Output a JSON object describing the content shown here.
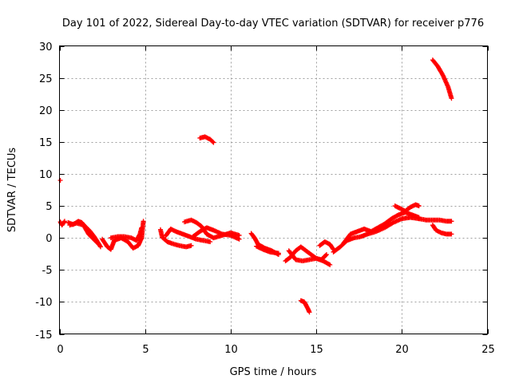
{
  "chart_data": {
    "type": "scatter",
    "title": "Day 101 of 2022, Sidereal Day-to-day VTEC variation (SDTVAR) for receiver p776",
    "xlabel": "GPS time / hours",
    "ylabel": "SDTVAR / TECUs",
    "xlim": [
      0,
      25
    ],
    "ylim": [
      -15,
      30
    ],
    "xticks": [
      0,
      5,
      10,
      15,
      20,
      25
    ],
    "yticks": [
      -15,
      -10,
      -5,
      0,
      5,
      10,
      15,
      20,
      25,
      30
    ],
    "grid": true,
    "marker": "+",
    "color": "#ff0000",
    "series": [
      {
        "name": "SDTVAR",
        "segments": [
          [
            [
              0.05,
              9.0
            ]
          ],
          [
            [
              0.05,
              2.5
            ],
            [
              0.15,
              2.0
            ],
            [
              0.3,
              2.6
            ]
          ],
          [
            [
              0.5,
              2.4
            ],
            [
              0.8,
              2.1
            ],
            [
              1.1,
              2.6
            ],
            [
              1.3,
              2.4
            ],
            [
              1.5,
              1.8
            ],
            [
              1.8,
              1.0
            ],
            [
              2.0,
              0.3
            ],
            [
              2.2,
              -0.5
            ],
            [
              2.4,
              -1.4
            ]
          ],
          [
            [
              0.6,
              2.0
            ],
            [
              1.0,
              2.3
            ],
            [
              1.4,
              2.0
            ],
            [
              1.7,
              0.6
            ],
            [
              2.0,
              -0.2
            ],
            [
              2.3,
              -1.0
            ]
          ],
          [
            [
              2.5,
              -0.2
            ],
            [
              2.8,
              -1.4
            ],
            [
              3.0,
              -1.8
            ],
            [
              3.2,
              -0.4
            ],
            [
              3.6,
              0.0
            ],
            [
              4.0,
              -0.6
            ],
            [
              4.3,
              -1.6
            ],
            [
              4.6,
              -1.2
            ],
            [
              4.8,
              0.0
            ],
            [
              4.9,
              2.6
            ]
          ],
          [
            [
              3.0,
              0.0
            ],
            [
              3.4,
              0.2
            ],
            [
              3.8,
              0.2
            ],
            [
              4.2,
              0.0
            ],
            [
              4.5,
              -0.4
            ],
            [
              4.7,
              0.6
            ],
            [
              4.8,
              1.6
            ]
          ],
          [
            [
              5.9,
              1.3
            ],
            [
              6.0,
              0.1
            ],
            [
              6.3,
              -0.6
            ],
            [
              6.6,
              -0.9
            ],
            [
              7.0,
              -1.2
            ],
            [
              7.4,
              -1.4
            ],
            [
              7.7,
              -1.2
            ]
          ],
          [
            [
              6.2,
              0.3
            ],
            [
              6.5,
              1.4
            ],
            [
              6.8,
              1.0
            ],
            [
              7.2,
              0.6
            ],
            [
              7.6,
              0.2
            ],
            [
              8.0,
              -0.2
            ],
            [
              8.4,
              -0.4
            ],
            [
              8.8,
              -0.6
            ]
          ],
          [
            [
              7.3,
              2.5
            ],
            [
              7.7,
              2.8
            ],
            [
              8.0,
              2.4
            ],
            [
              8.3,
              1.8
            ],
            [
              8.6,
              0.6
            ],
            [
              9.0,
              0.0
            ],
            [
              9.5,
              0.4
            ],
            [
              10.0,
              0.8
            ],
            [
              10.5,
              0.4
            ]
          ],
          [
            [
              7.8,
              0.2
            ],
            [
              8.2,
              1.0
            ],
            [
              8.6,
              1.6
            ],
            [
              9.0,
              1.2
            ],
            [
              9.5,
              0.6
            ],
            [
              10.0,
              0.4
            ],
            [
              10.5,
              -0.2
            ]
          ],
          [
            [
              8.2,
              15.6
            ],
            [
              8.5,
              15.8
            ],
            [
              8.8,
              15.4
            ],
            [
              9.0,
              14.9
            ]
          ],
          [
            [
              11.2,
              0.7
            ],
            [
              11.4,
              0.0
            ],
            [
              11.6,
              -1.0
            ],
            [
              12.0,
              -1.6
            ],
            [
              12.4,
              -2.0
            ],
            [
              12.8,
              -2.6
            ]
          ],
          [
            [
              11.5,
              -1.3
            ],
            [
              11.9,
              -1.8
            ],
            [
              12.3,
              -2.2
            ],
            [
              12.8,
              -2.4
            ]
          ],
          [
            [
              13.2,
              -3.6
            ],
            [
              13.5,
              -3.0
            ],
            [
              13.8,
              -2.0
            ],
            [
              14.1,
              -1.4
            ],
            [
              14.4,
              -2.0
            ],
            [
              14.7,
              -2.6
            ],
            [
              15.0,
              -3.2
            ],
            [
              15.3,
              -3.4
            ],
            [
              15.6,
              -2.6
            ]
          ],
          [
            [
              13.4,
              -2.0
            ],
            [
              13.8,
              -3.4
            ],
            [
              14.2,
              -3.6
            ],
            [
              14.6,
              -3.4
            ],
            [
              15.0,
              -3.2
            ],
            [
              15.4,
              -3.6
            ],
            [
              15.8,
              -4.2
            ]
          ],
          [
            [
              15.2,
              -1.2
            ],
            [
              15.5,
              -0.6
            ],
            [
              15.8,
              -1.0
            ],
            [
              16.0,
              -1.8
            ]
          ],
          [
            [
              14.1,
              -9.8
            ],
            [
              14.3,
              -10.0
            ],
            [
              14.5,
              -11.0
            ],
            [
              14.6,
              -11.6
            ]
          ],
          [
            [
              16.0,
              -2.2
            ],
            [
              16.4,
              -1.4
            ],
            [
              16.8,
              -0.4
            ],
            [
              17.2,
              0.0
            ],
            [
              17.6,
              0.2
            ],
            [
              18.0,
              0.6
            ],
            [
              18.5,
              1.0
            ],
            [
              19.0,
              1.6
            ],
            [
              19.5,
              2.4
            ],
            [
              20.0,
              3.0
            ],
            [
              20.5,
              3.2
            ],
            [
              21.0,
              3.0
            ]
          ],
          [
            [
              16.6,
              -0.8
            ],
            [
              17.0,
              0.6
            ],
            [
              17.4,
              1.0
            ],
            [
              17.8,
              1.4
            ],
            [
              18.2,
              1.0
            ],
            [
              18.6,
              1.6
            ],
            [
              19.0,
              2.2
            ],
            [
              19.4,
              3.0
            ],
            [
              19.8,
              3.6
            ],
            [
              20.2,
              4.0
            ],
            [
              20.6,
              3.6
            ],
            [
              21.0,
              3.2
            ]
          ],
          [
            [
              19.6,
              5.0
            ],
            [
              19.9,
              4.6
            ],
            [
              20.2,
              4.2
            ],
            [
              20.5,
              4.8
            ],
            [
              20.8,
              5.2
            ],
            [
              21.0,
              5.0
            ]
          ],
          [
            [
              21.0,
              3.0
            ],
            [
              21.4,
              2.8
            ],
            [
              21.8,
              2.8
            ],
            [
              22.2,
              2.8
            ],
            [
              22.6,
              2.6
            ],
            [
              22.9,
              2.6
            ]
          ],
          [
            [
              21.8,
              2.0
            ],
            [
              22.0,
              1.2
            ],
            [
              22.3,
              0.8
            ],
            [
              22.6,
              0.6
            ],
            [
              22.9,
              0.6
            ]
          ],
          [
            [
              21.8,
              27.8
            ],
            [
              22.1,
              26.8
            ],
            [
              22.4,
              25.4
            ],
            [
              22.7,
              23.6
            ],
            [
              22.9,
              21.8
            ]
          ]
        ]
      }
    ]
  }
}
